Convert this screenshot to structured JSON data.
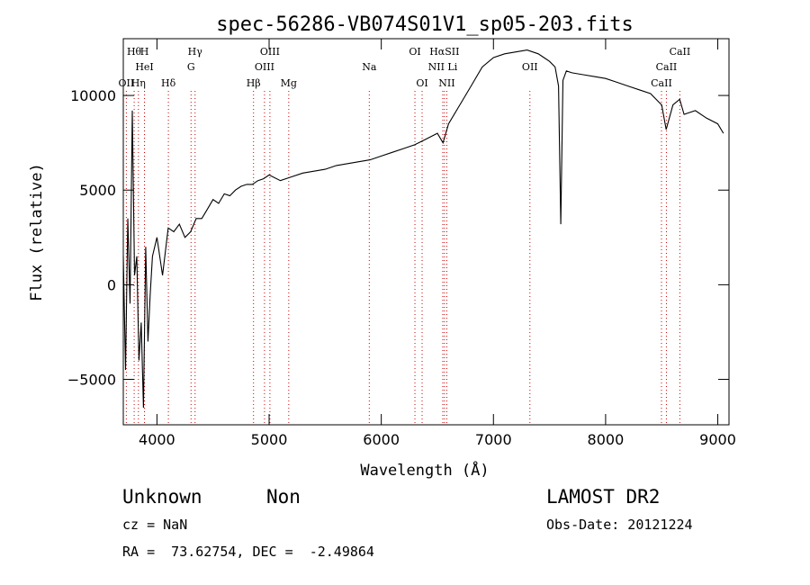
{
  "chart_data": {
    "type": "line",
    "title": "spec-56286-VB074S01V1_sp05-203.fits",
    "xlabel": "Wavelength (Å)",
    "ylabel": "Flux (relative)",
    "xlim": [
      3700,
      9100
    ],
    "ylim": [
      -7400,
      13000
    ],
    "x_ticks": [
      4000,
      5000,
      6000,
      7000,
      8000,
      9000
    ],
    "y_ticks": [
      -5000,
      0,
      5000,
      10000
    ],
    "x_tick_labels": [
      "4000",
      "5000",
      "6000",
      "7000",
      "8000",
      "9000"
    ],
    "y_tick_labels": [
      "−5000",
      "0",
      "5000",
      "10000"
    ],
    "grid": false,
    "line_color": "#000000",
    "marker_color": "#cc0000",
    "series": [
      {
        "x": [
          3700,
          3720,
          3740,
          3760,
          3780,
          3800,
          3820,
          3840,
          3860,
          3880,
          3900,
          3920,
          3940,
          3960,
          3980,
          4000,
          4050,
          4100,
          4150,
          4200,
          4250,
          4300,
          4350,
          4400,
          4450,
          4500,
          4550,
          4600,
          4650,
          4700,
          4750,
          4800,
          4850,
          4900,
          4950,
          5000,
          5100,
          5200,
          5300,
          5400,
          5500,
          5600,
          5700,
          5800,
          5900,
          6000,
          6100,
          6200,
          6300,
          6400,
          6500,
          6550,
          6600,
          6700,
          6800,
          6900,
          7000,
          7100,
          7200,
          7300,
          7400,
          7450,
          7500,
          7550,
          7580,
          7600,
          7620,
          7650,
          7700,
          7800,
          7900,
          8000,
          8100,
          8200,
          8300,
          8400,
          8500,
          8540,
          8600,
          8660,
          8700,
          8800,
          8900,
          9000,
          9050
        ],
        "y": [
          1500,
          -4500,
          3500,
          -1000,
          9200,
          500,
          1500,
          -4000,
          -2000,
          -6500,
          2000,
          -3000,
          -500,
          1500,
          2000,
          2500,
          500,
          3000,
          2800,
          3200,
          2500,
          2800,
          3500,
          3500,
          4000,
          4500,
          4300,
          4800,
          4700,
          5000,
          5200,
          5300,
          5300,
          5500,
          5600,
          5800,
          5500,
          5700,
          5900,
          6000,
          6100,
          6300,
          6400,
          6500,
          6600,
          6800,
          7000,
          7200,
          7400,
          7700,
          8000,
          7500,
          8500,
          9500,
          10500,
          11500,
          12000,
          12200,
          12300,
          12400,
          12200,
          12000,
          11800,
          11500,
          10500,
          3200,
          10800,
          11300,
          11200,
          11100,
          11000,
          10900,
          10700,
          10500,
          10300,
          10100,
          9500,
          8200,
          9500,
          9800,
          9000,
          9200,
          8800,
          8500,
          8000
        ]
      }
    ],
    "line_markers": [
      {
        "label": "Hθ",
        "x": 3797,
        "row": 0
      },
      {
        "label": "H",
        "x": 3889,
        "row": 0
      },
      {
        "label": "Hγ",
        "x": 4340,
        "row": 0
      },
      {
        "label": "OIII",
        "x": 5007,
        "row": 0
      },
      {
        "label": "OI",
        "x": 6300,
        "row": 0
      },
      {
        "label": "HαSII",
        "x": 6563,
        "row": 0
      },
      {
        "label": "CaII",
        "x": 8662,
        "row": 0
      },
      {
        "label": "HeI",
        "x": 3889,
        "row": 1
      },
      {
        "label": "G",
        "x": 4304,
        "row": 1
      },
      {
        "label": "OIII",
        "x": 4959,
        "row": 1
      },
      {
        "label": "Na",
        "x": 5893,
        "row": 1
      },
      {
        "label": "NII Li",
        "x": 6548,
        "row": 1
      },
      {
        "label": "OII",
        "x": 7325,
        "row": 1
      },
      {
        "label": "CaII",
        "x": 8542,
        "row": 1
      },
      {
        "label": "OII",
        "x": 3727,
        "row": 2
      },
      {
        "label": "Hη",
        "x": 3835,
        "row": 2
      },
      {
        "label": "Hδ",
        "x": 4102,
        "row": 2
      },
      {
        "label": "Hβ",
        "x": 4861,
        "row": 2
      },
      {
        "label": "Mg",
        "x": 5175,
        "row": 2
      },
      {
        "label": "OI",
        "x": 6364,
        "row": 2
      },
      {
        "label": "NII",
        "x": 6584,
        "row": 2
      },
      {
        "label": "CaII",
        "x": 8498,
        "row": 2
      }
    ]
  },
  "info": {
    "class": "Unknown",
    "subclass": "Non",
    "cz": "cz = NaN",
    "coords": "RA =  73.62754, DEC =  -2.49864",
    "survey": "LAMOST DR2",
    "obs_date": "Obs-Date: 20121224"
  }
}
